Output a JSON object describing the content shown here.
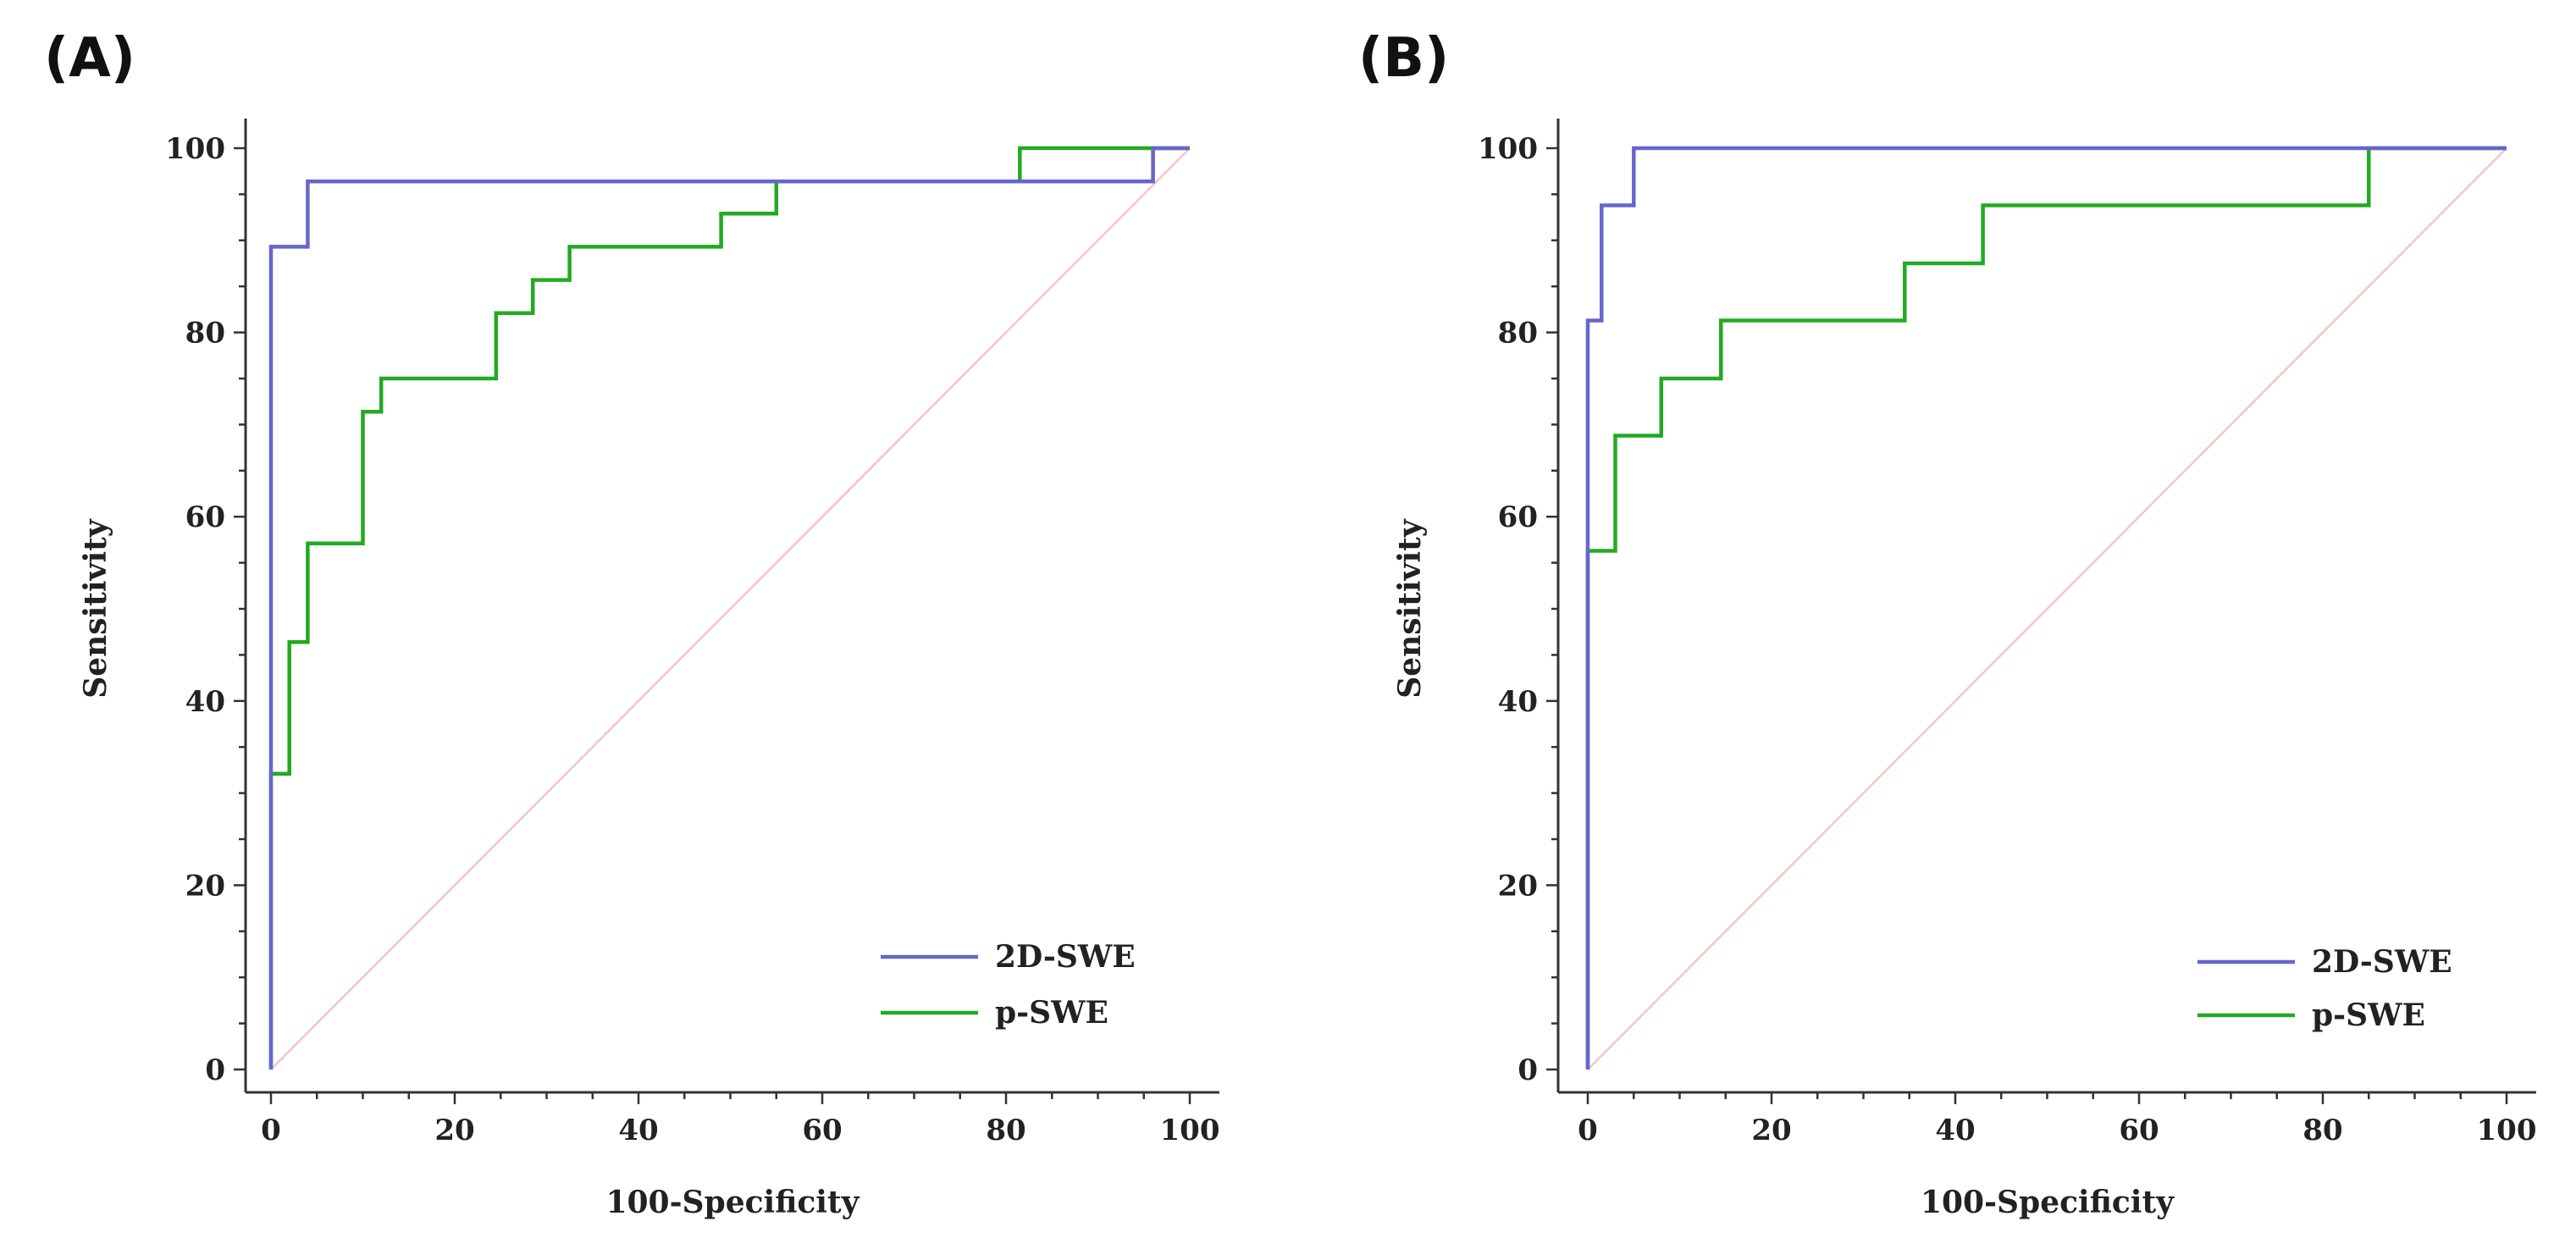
{
  "chart_data": [
    {
      "type": "line",
      "panel_label": "(A)",
      "xlabel": "100-Specificity",
      "ylabel": "Sensitivity",
      "xlim": [
        0,
        100
      ],
      "ylim": [
        0,
        100
      ],
      "xticks": [
        "0",
        "20",
        "40",
        "60",
        "80",
        "100"
      ],
      "yticks": [
        "0",
        "20",
        "40",
        "60",
        "80",
        "100"
      ],
      "legend_position": "bottom-right",
      "reference_line": {
        "x": [
          0,
          100
        ],
        "y": [
          0,
          100
        ],
        "color": "#f4c5c5"
      },
      "series": [
        {
          "name": "2D-SWE",
          "color": "#6666cc",
          "x": [
            0,
            0,
            0,
            4,
            4,
            96,
            96,
            100
          ],
          "y": [
            0,
            32,
            89.3,
            89.3,
            96.4,
            96.4,
            100,
            100
          ]
        },
        {
          "name": "p-SWE",
          "color": "#22aa22",
          "x": [
            0,
            0,
            2,
            2,
            4,
            4,
            10,
            10,
            12,
            12,
            24.5,
            24.5,
            28.5,
            28.5,
            32.5,
            32.5,
            49,
            49,
            55,
            55,
            81.5,
            81.5,
            100
          ],
          "y": [
            0,
            32.1,
            32.1,
            46.4,
            46.4,
            57.1,
            57.1,
            71.4,
            71.4,
            75,
            75,
            82.1,
            82.1,
            85.7,
            85.7,
            89.3,
            89.3,
            92.9,
            92.9,
            96.4,
            96.4,
            100,
            100
          ]
        }
      ]
    },
    {
      "type": "line",
      "panel_label": "(B)",
      "xlabel": "100-Specificity",
      "ylabel": "Sensitivity",
      "xlim": [
        0,
        100
      ],
      "ylim": [
        0,
        100
      ],
      "xticks": [
        "0",
        "20",
        "40",
        "60",
        "80",
        "100"
      ],
      "yticks": [
        "0",
        "20",
        "40",
        "60",
        "80",
        "100"
      ],
      "legend_position": "bottom-right",
      "reference_line": {
        "x": [
          0,
          100
        ],
        "y": [
          0,
          100
        ],
        "color": "#f4c5c5"
      },
      "series": [
        {
          "name": "2D-SWE",
          "color": "#6666cc",
          "x": [
            0,
            0,
            0,
            1.5,
            1.5,
            5,
            5,
            100
          ],
          "y": [
            0,
            60,
            81.3,
            81.3,
            93.8,
            93.8,
            100,
            100
          ]
        },
        {
          "name": "p-SWE",
          "color": "#22aa22",
          "x": [
            0,
            0,
            3,
            3,
            8,
            8,
            14.5,
            14.5,
            34.5,
            34.5,
            43,
            43,
            85,
            85,
            100
          ],
          "y": [
            0,
            56.3,
            56.3,
            68.8,
            68.8,
            75,
            75,
            81.3,
            81.3,
            87.5,
            87.5,
            93.8,
            93.8,
            100,
            100
          ]
        }
      ]
    }
  ]
}
